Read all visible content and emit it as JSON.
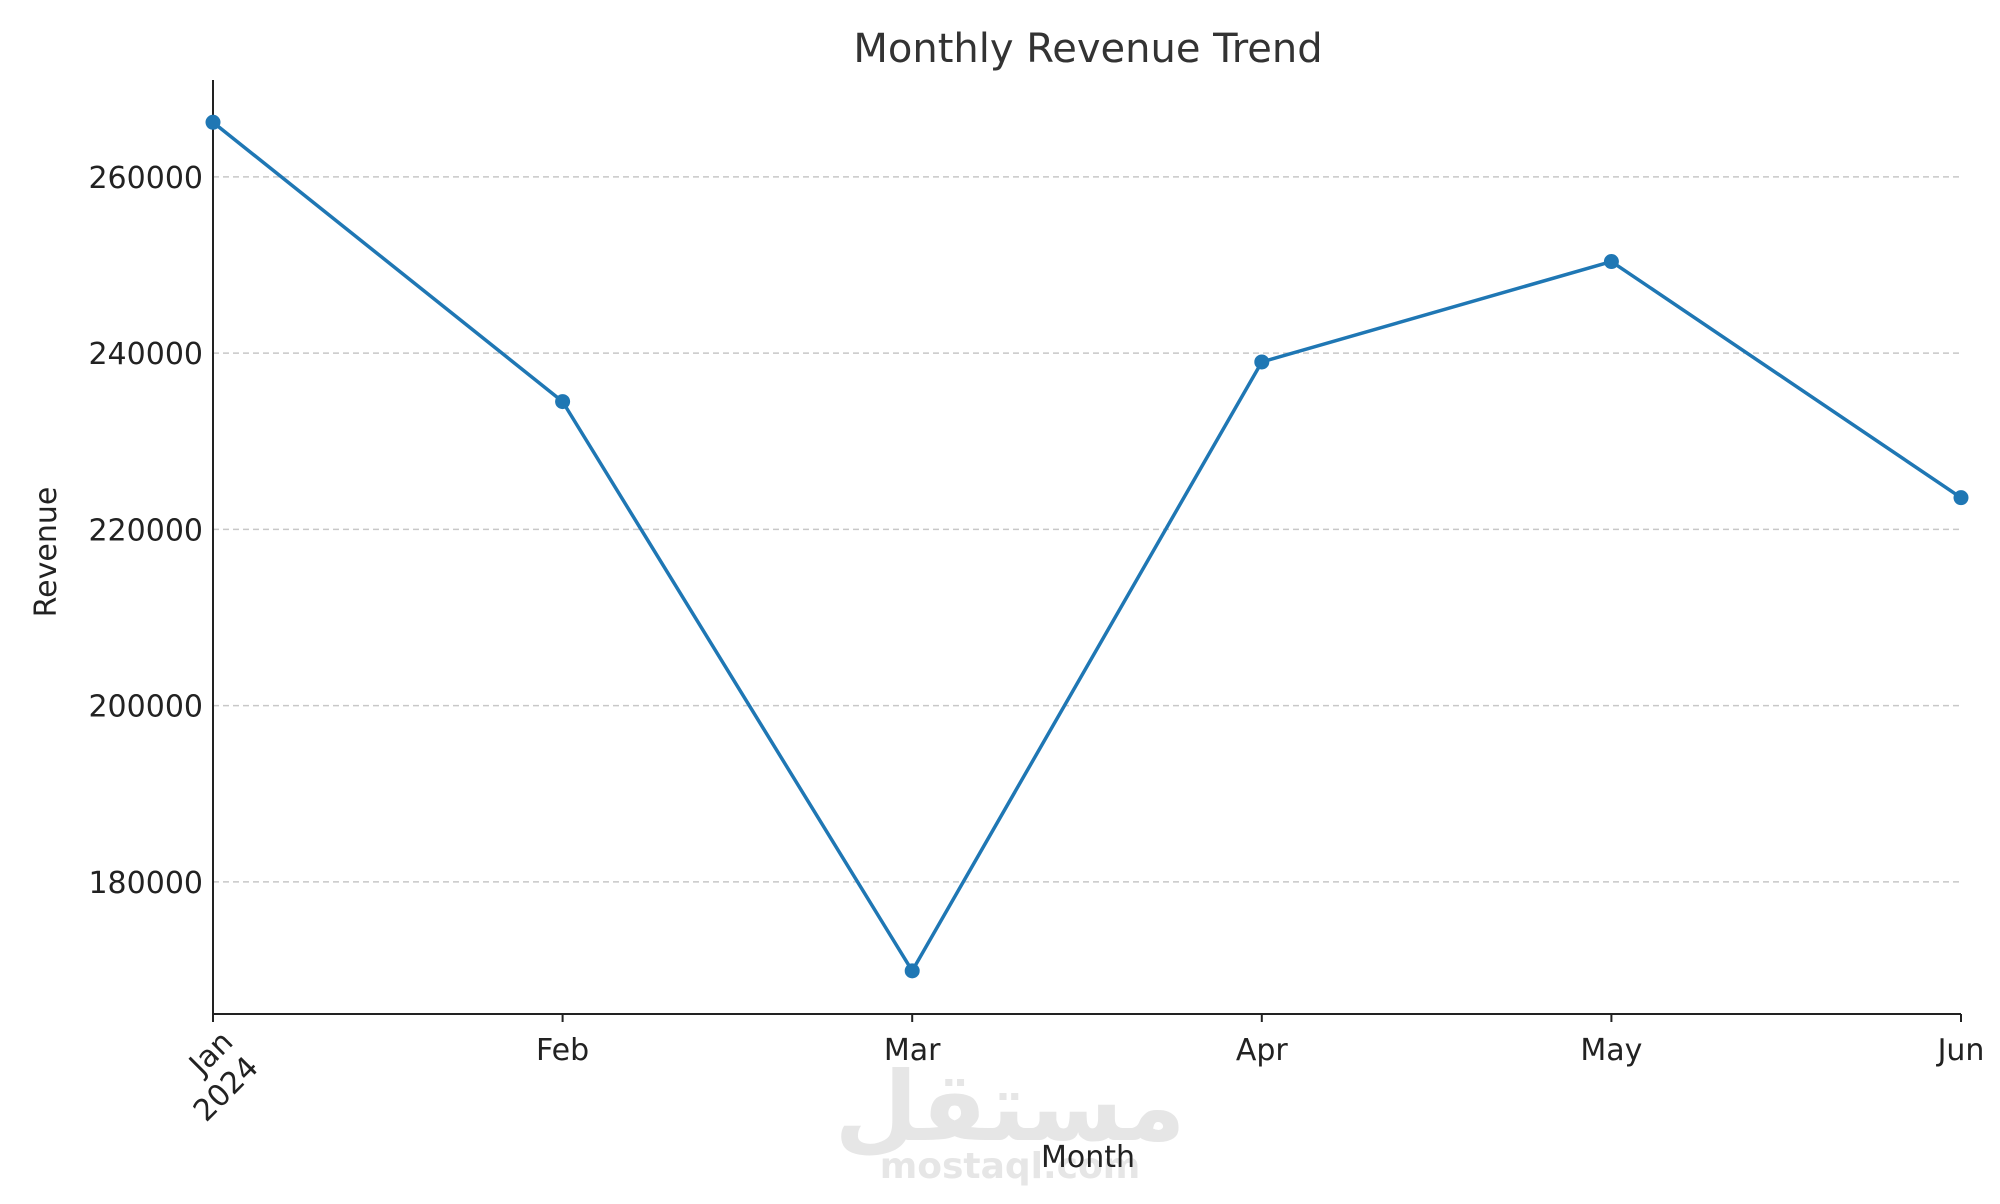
{
  "chart_data": {
    "type": "line",
    "title": "Monthly Revenue Trend",
    "xlabel": "Month",
    "ylabel": "Revenue",
    "categories": [
      "Jan",
      "Feb",
      "Mar",
      "Apr",
      "May",
      "Jun"
    ],
    "x_tick_labels": [
      "Jan\n2024",
      "Feb",
      "Mar",
      "Apr",
      "May",
      "Jun"
    ],
    "values": [
      266200,
      234500,
      169900,
      239000,
      250400,
      223600
    ],
    "y_ticks": [
      180000,
      200000,
      220000,
      240000,
      260000
    ],
    "y_tick_labels": [
      "180000",
      "200000",
      "220000",
      "240000",
      "260000"
    ],
    "ylim": [
      165000,
      271000
    ],
    "grid": "horizontal dashed",
    "line_color": "#1f77b4",
    "watermark": {
      "arabic": "مستقل",
      "latin": "mostaql.com"
    }
  }
}
